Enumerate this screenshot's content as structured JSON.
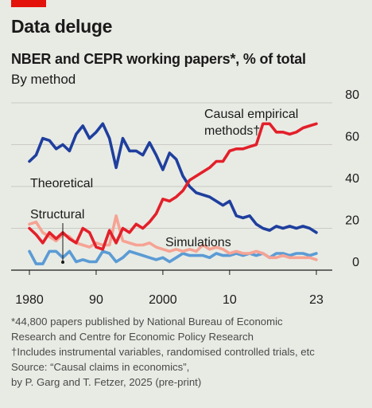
{
  "header": {
    "title": "Data deluge",
    "subtitle": "NBER and CEPR working papers*, % of total",
    "subsubtitle": "By method"
  },
  "notes": [
    "*44,800 papers published by National Bureau of Economic",
    "Research and Centre for Economic Policy Research",
    "†Includes instrumental variables, randomised controlled trials, etc",
    "Source: “Causal claims in economics”,",
    "by P. Garg and T. Fetzer, 2025 (pre-print)"
  ],
  "colors": {
    "background": "#e8ebe4",
    "brand_red": "#e3120b",
    "theoretical": "#1f3f9e",
    "causal": "#e3202a",
    "structural": "#f6a394",
    "simulations": "#5b9bd5",
    "grid": "#c9cbc4"
  },
  "chart_data": {
    "type": "line",
    "x": [
      1980,
      1981,
      1982,
      1983,
      1984,
      1985,
      1986,
      1987,
      1988,
      1989,
      1990,
      1991,
      1992,
      1993,
      1994,
      1995,
      1996,
      1997,
      1998,
      1999,
      2000,
      2001,
      2002,
      2003,
      2004,
      2005,
      2006,
      2007,
      2008,
      2009,
      2010,
      2011,
      2012,
      2013,
      2014,
      2015,
      2016,
      2017,
      2018,
      2019,
      2020,
      2021,
      2022,
      2023
    ],
    "xlim": [
      1979,
      2024.5
    ],
    "ylim": [
      0,
      80
    ],
    "y_ticks": [
      0,
      20,
      40,
      60,
      80
    ],
    "x_ticks": [
      {
        "value": 1980,
        "label": "1980"
      },
      {
        "value": 1990,
        "label": "90"
      },
      {
        "value": 2000,
        "label": "2000"
      },
      {
        "value": 2010,
        "label": "10"
      },
      {
        "value": 2023,
        "label": "23"
      }
    ],
    "series": [
      {
        "name": "Causal empirical methods†",
        "key": "causal",
        "values": [
          20,
          17,
          13,
          18,
          15,
          18,
          15,
          13,
          20,
          18,
          11,
          10,
          19,
          13,
          20,
          18,
          22,
          20,
          23,
          27,
          34,
          33,
          35,
          38,
          43,
          45,
          47,
          49,
          52,
          52,
          57,
          58,
          58,
          59,
          60,
          70,
          70,
          66,
          66,
          65,
          66,
          68,
          69,
          70
        ]
      },
      {
        "name": "Theoretical",
        "key": "theoretical",
        "values": [
          52,
          55,
          63,
          62,
          58,
          60,
          57,
          65,
          69,
          63,
          66,
          70,
          63,
          49,
          63,
          57,
          57,
          55,
          61,
          55,
          48,
          56,
          53,
          45,
          40,
          37,
          36,
          35,
          33,
          31,
          33,
          26,
          25,
          26,
          22,
          20,
          19,
          21,
          20,
          21,
          20,
          21,
          20,
          18
        ]
      },
      {
        "name": "Structural",
        "key": "structural",
        "values": [
          22,
          23,
          18,
          16,
          14,
          17,
          16,
          13,
          12,
          11,
          13,
          12,
          12,
          26,
          14,
          13,
          12,
          12,
          13,
          11,
          10,
          9,
          10,
          9,
          10,
          9,
          12,
          10,
          11,
          10,
          8,
          9,
          8,
          8,
          9,
          8,
          6,
          6,
          7,
          6,
          6,
          6,
          6,
          5
        ]
      },
      {
        "name": "Simulations",
        "key": "simulations",
        "values": [
          9,
          3,
          3,
          9,
          9,
          6,
          9,
          4,
          5,
          4,
          4,
          9,
          8,
          4,
          6,
          9,
          8,
          7,
          6,
          5,
          6,
          4,
          6,
          8,
          7,
          7,
          7,
          6,
          8,
          7,
          7,
          8,
          7,
          8,
          7,
          8,
          6,
          8,
          8,
          7,
          8,
          8,
          7,
          8
        ]
      }
    ],
    "labels": {
      "causal_line1": "Causal empirical",
      "causal_line2": "methods†",
      "theoretical": "Theoretical",
      "structural": "Structural",
      "simulations": "Simulations"
    }
  }
}
